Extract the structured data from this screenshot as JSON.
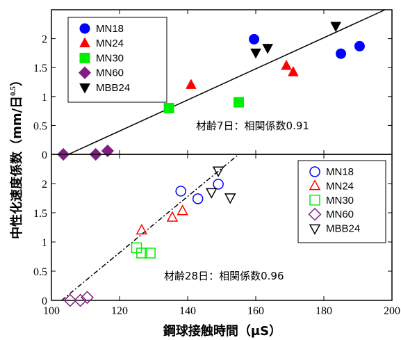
{
  "chart_data": [
    {
      "type": "scatter",
      "panel": "top",
      "xlim": [
        100,
        200
      ],
      "ylim": [
        0,
        2.5
      ],
      "xticks": [
        100,
        120,
        140,
        160,
        180,
        200
      ],
      "yticks": [
        0,
        0.5,
        1,
        1.5,
        2
      ],
      "ytick_labels": [
        "0",
        "0.5",
        "1",
        "1.5",
        "2"
      ],
      "filled_markers": true,
      "legend_position": "top-left",
      "annotation": "材齢7日：相関係数0.91",
      "trendline": {
        "style": "solid",
        "x": [
          105,
          198
        ],
        "y": [
          0,
          2.5
        ]
      },
      "series": [
        {
          "name": "MN18",
          "marker": "circle",
          "color": "#0000ff",
          "points": [
            [
              159.5,
              1.99
            ],
            [
              185,
              1.74
            ],
            [
              190.5,
              1.87
            ]
          ]
        },
        {
          "name": "MN24",
          "marker": "triangle-up",
          "color": "#ff0000",
          "points": [
            [
              141,
              1.2
            ],
            [
              169,
              1.53
            ],
            [
              171,
              1.42
            ]
          ]
        },
        {
          "name": "MN30",
          "marker": "square",
          "color": "#00ee00",
          "points": [
            [
              134.5,
              0.8
            ],
            [
              155,
              0.9
            ]
          ]
        },
        {
          "name": "MN60",
          "marker": "diamond",
          "color": "#7f1f7f",
          "points": [
            [
              103.5,
              0
            ],
            [
              113,
              0
            ],
            [
              116.5,
              0.06
            ]
          ]
        },
        {
          "name": "MBB24",
          "marker": "triangle-down",
          "color": "#000000",
          "points": [
            [
              160,
              1.76
            ],
            [
              163.5,
              1.84
            ],
            [
              183.5,
              2.22
            ]
          ]
        }
      ]
    },
    {
      "type": "scatter",
      "panel": "bottom",
      "xlim": [
        100,
        200
      ],
      "ylim": [
        0,
        2.5
      ],
      "xticks": [
        100,
        120,
        140,
        160,
        180,
        200
      ],
      "xtick_labels": [
        "100",
        "120",
        "140",
        "160",
        "180",
        "200"
      ],
      "yticks": [
        0,
        0.5,
        1,
        1.5,
        2
      ],
      "ytick_labels": [
        "0",
        "0.5",
        "1",
        "1.5",
        "2"
      ],
      "filled_markers": false,
      "legend_position": "top-right",
      "annotation": "材齢28日：相関係数0.96",
      "trendline": {
        "style": "dash-dot",
        "x": [
          103,
          155
        ],
        "y": [
          0,
          2.5
        ]
      },
      "series": [
        {
          "name": "MN18",
          "marker": "circle",
          "color": "#0000ff",
          "points": [
            [
              138,
              1.87
            ],
            [
              143,
              1.74
            ],
            [
              149,
              1.99
            ]
          ]
        },
        {
          "name": "MN24",
          "marker": "triangle-up",
          "color": "#ff0000",
          "points": [
            [
              126.5,
              1.2
            ],
            [
              135.5,
              1.42
            ],
            [
              138.5,
              1.53
            ]
          ]
        },
        {
          "name": "MN30",
          "marker": "square",
          "color": "#00ee00",
          "points": [
            [
              125,
              0.9
            ],
            [
              126.5,
              0.81
            ],
            [
              129,
              0.81
            ]
          ]
        },
        {
          "name": "MN60",
          "marker": "diamond",
          "color": "#7f1f7f",
          "points": [
            [
              105.5,
              0
            ],
            [
              108.5,
              0
            ],
            [
              110.5,
              0.05
            ]
          ]
        },
        {
          "name": "MBB24",
          "marker": "triangle-down",
          "color": "#000000",
          "points": [
            [
              147,
              1.85
            ],
            [
              149,
              2.22
            ],
            [
              152.5,
              1.76
            ]
          ]
        }
      ]
    }
  ],
  "axes": {
    "xlabel": "鋼球接触時間（μS）",
    "ylabel_main": "中性化速度係数（mm/日",
    "ylabel_sup": "0.5",
    "ylabel_close": "）"
  }
}
